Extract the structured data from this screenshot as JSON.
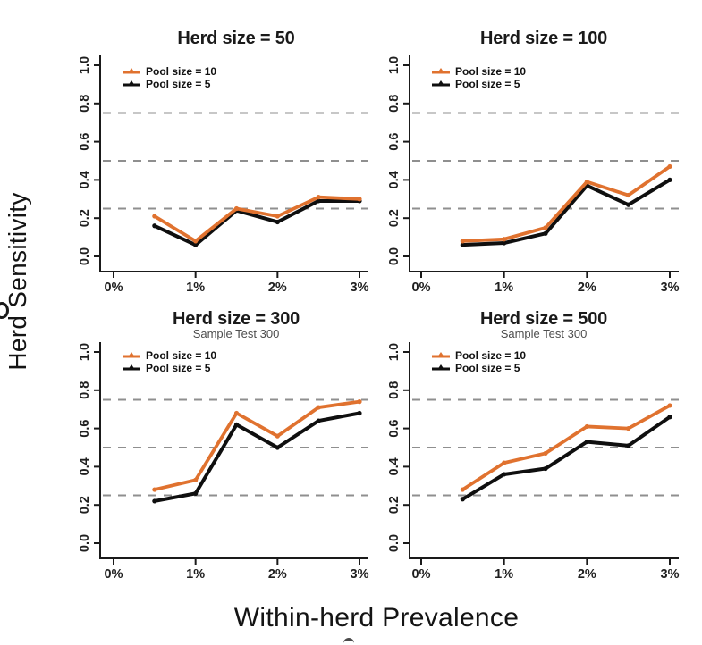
{
  "figure": {
    "ylabel": "Herd Sensitivity",
    "xlabel": "Within-herd Prevalence",
    "colors": {
      "pool10": "#E0722F",
      "pool5": "#0F0F0F",
      "grid": "#8F8F8F",
      "axis": "#1A1A1A",
      "subtitle": "#4D4D4D"
    },
    "legend": [
      {
        "label": "Pool size = 10",
        "key": "pool10"
      },
      {
        "label": "Pool size = 5",
        "key": "pool5"
      }
    ]
  },
  "chart_data": [
    {
      "type": "line",
      "title": "Herd size = 50",
      "subtitle": "",
      "xlabel_shared": "Within-herd Prevalence",
      "ylabel_shared": "Herd Sensitivity",
      "x_percent": [
        0.5,
        1,
        1.5,
        2,
        2.5,
        3
      ],
      "x_ticks": [
        "0%",
        "1%",
        "2%",
        "3%"
      ],
      "y_ticks": [
        "0.0",
        "0.2",
        "0.4",
        "0.6",
        "0.8",
        "1.0"
      ],
      "xlim_percent": [
        0,
        3
      ],
      "ylim": [
        0,
        1
      ],
      "hlines_dashed": [
        0.25,
        0.5,
        0.75
      ],
      "legend_position": "top-left",
      "series": [
        {
          "name": "Pool size = 10",
          "color_key": "pool10",
          "values": [
            0.21,
            0.08,
            0.25,
            0.21,
            0.31,
            0.3
          ]
        },
        {
          "name": "Pool size = 5",
          "color_key": "pool5",
          "values": [
            0.16,
            0.06,
            0.24,
            0.18,
            0.29,
            0.29
          ]
        }
      ]
    },
    {
      "type": "line",
      "title": "Herd size = 100",
      "subtitle": "",
      "x_percent": [
        0.5,
        1,
        1.5,
        2,
        2.5,
        3
      ],
      "x_ticks": [
        "0%",
        "1%",
        "2%",
        "3%"
      ],
      "y_ticks": [
        "0.0",
        "0.2",
        "0.4",
        "0.6",
        "0.8",
        "1.0"
      ],
      "xlim_percent": [
        0,
        3
      ],
      "ylim": [
        0,
        1
      ],
      "hlines_dashed": [
        0.25,
        0.5,
        0.75
      ],
      "legend_position": "top-left",
      "series": [
        {
          "name": "Pool size = 10",
          "color_key": "pool10",
          "values": [
            0.08,
            0.09,
            0.15,
            0.39,
            0.32,
            0.47
          ]
        },
        {
          "name": "Pool size = 5",
          "color_key": "pool5",
          "values": [
            0.06,
            0.07,
            0.12,
            0.37,
            0.27,
            0.4
          ]
        }
      ]
    },
    {
      "type": "line",
      "title": "Herd size = 300",
      "subtitle": "Sample Test 300",
      "x_percent": [
        0.5,
        1,
        1.5,
        2,
        2.5,
        3
      ],
      "x_ticks": [
        "0%",
        "1%",
        "2%",
        "3%"
      ],
      "y_ticks": [
        "0.0",
        "0.2",
        "0.4",
        "0.6",
        "0.8",
        "1.0"
      ],
      "xlim_percent": [
        0,
        3
      ],
      "ylim": [
        0,
        1
      ],
      "hlines_dashed": [
        0.25,
        0.5,
        0.75
      ],
      "legend_position": "top-left",
      "series": [
        {
          "name": "Pool size = 10",
          "color_key": "pool10",
          "values": [
            0.28,
            0.33,
            0.68,
            0.56,
            0.71,
            0.74
          ]
        },
        {
          "name": "Pool size = 5",
          "color_key": "pool5",
          "values": [
            0.22,
            0.26,
            0.62,
            0.5,
            0.64,
            0.68
          ]
        }
      ]
    },
    {
      "type": "line",
      "title": "Herd size = 500",
      "subtitle": "Sample Test 300",
      "x_percent": [
        0.5,
        1,
        1.5,
        2,
        2.5,
        3
      ],
      "x_ticks": [
        "0%",
        "1%",
        "2%",
        "3%"
      ],
      "y_ticks": [
        "0.0",
        "0.2",
        "0.4",
        "0.6",
        "0.8",
        "1.0"
      ],
      "xlim_percent": [
        0,
        3
      ],
      "ylim": [
        0,
        1
      ],
      "hlines_dashed": [
        0.25,
        0.5,
        0.75
      ],
      "legend_position": "top-left",
      "series": [
        {
          "name": "Pool size = 10",
          "color_key": "pool10",
          "values": [
            0.28,
            0.42,
            0.47,
            0.61,
            0.6,
            0.72
          ]
        },
        {
          "name": "Pool size = 5",
          "color_key": "pool5",
          "values": [
            0.23,
            0.36,
            0.39,
            0.53,
            0.51,
            0.66
          ]
        }
      ]
    }
  ]
}
